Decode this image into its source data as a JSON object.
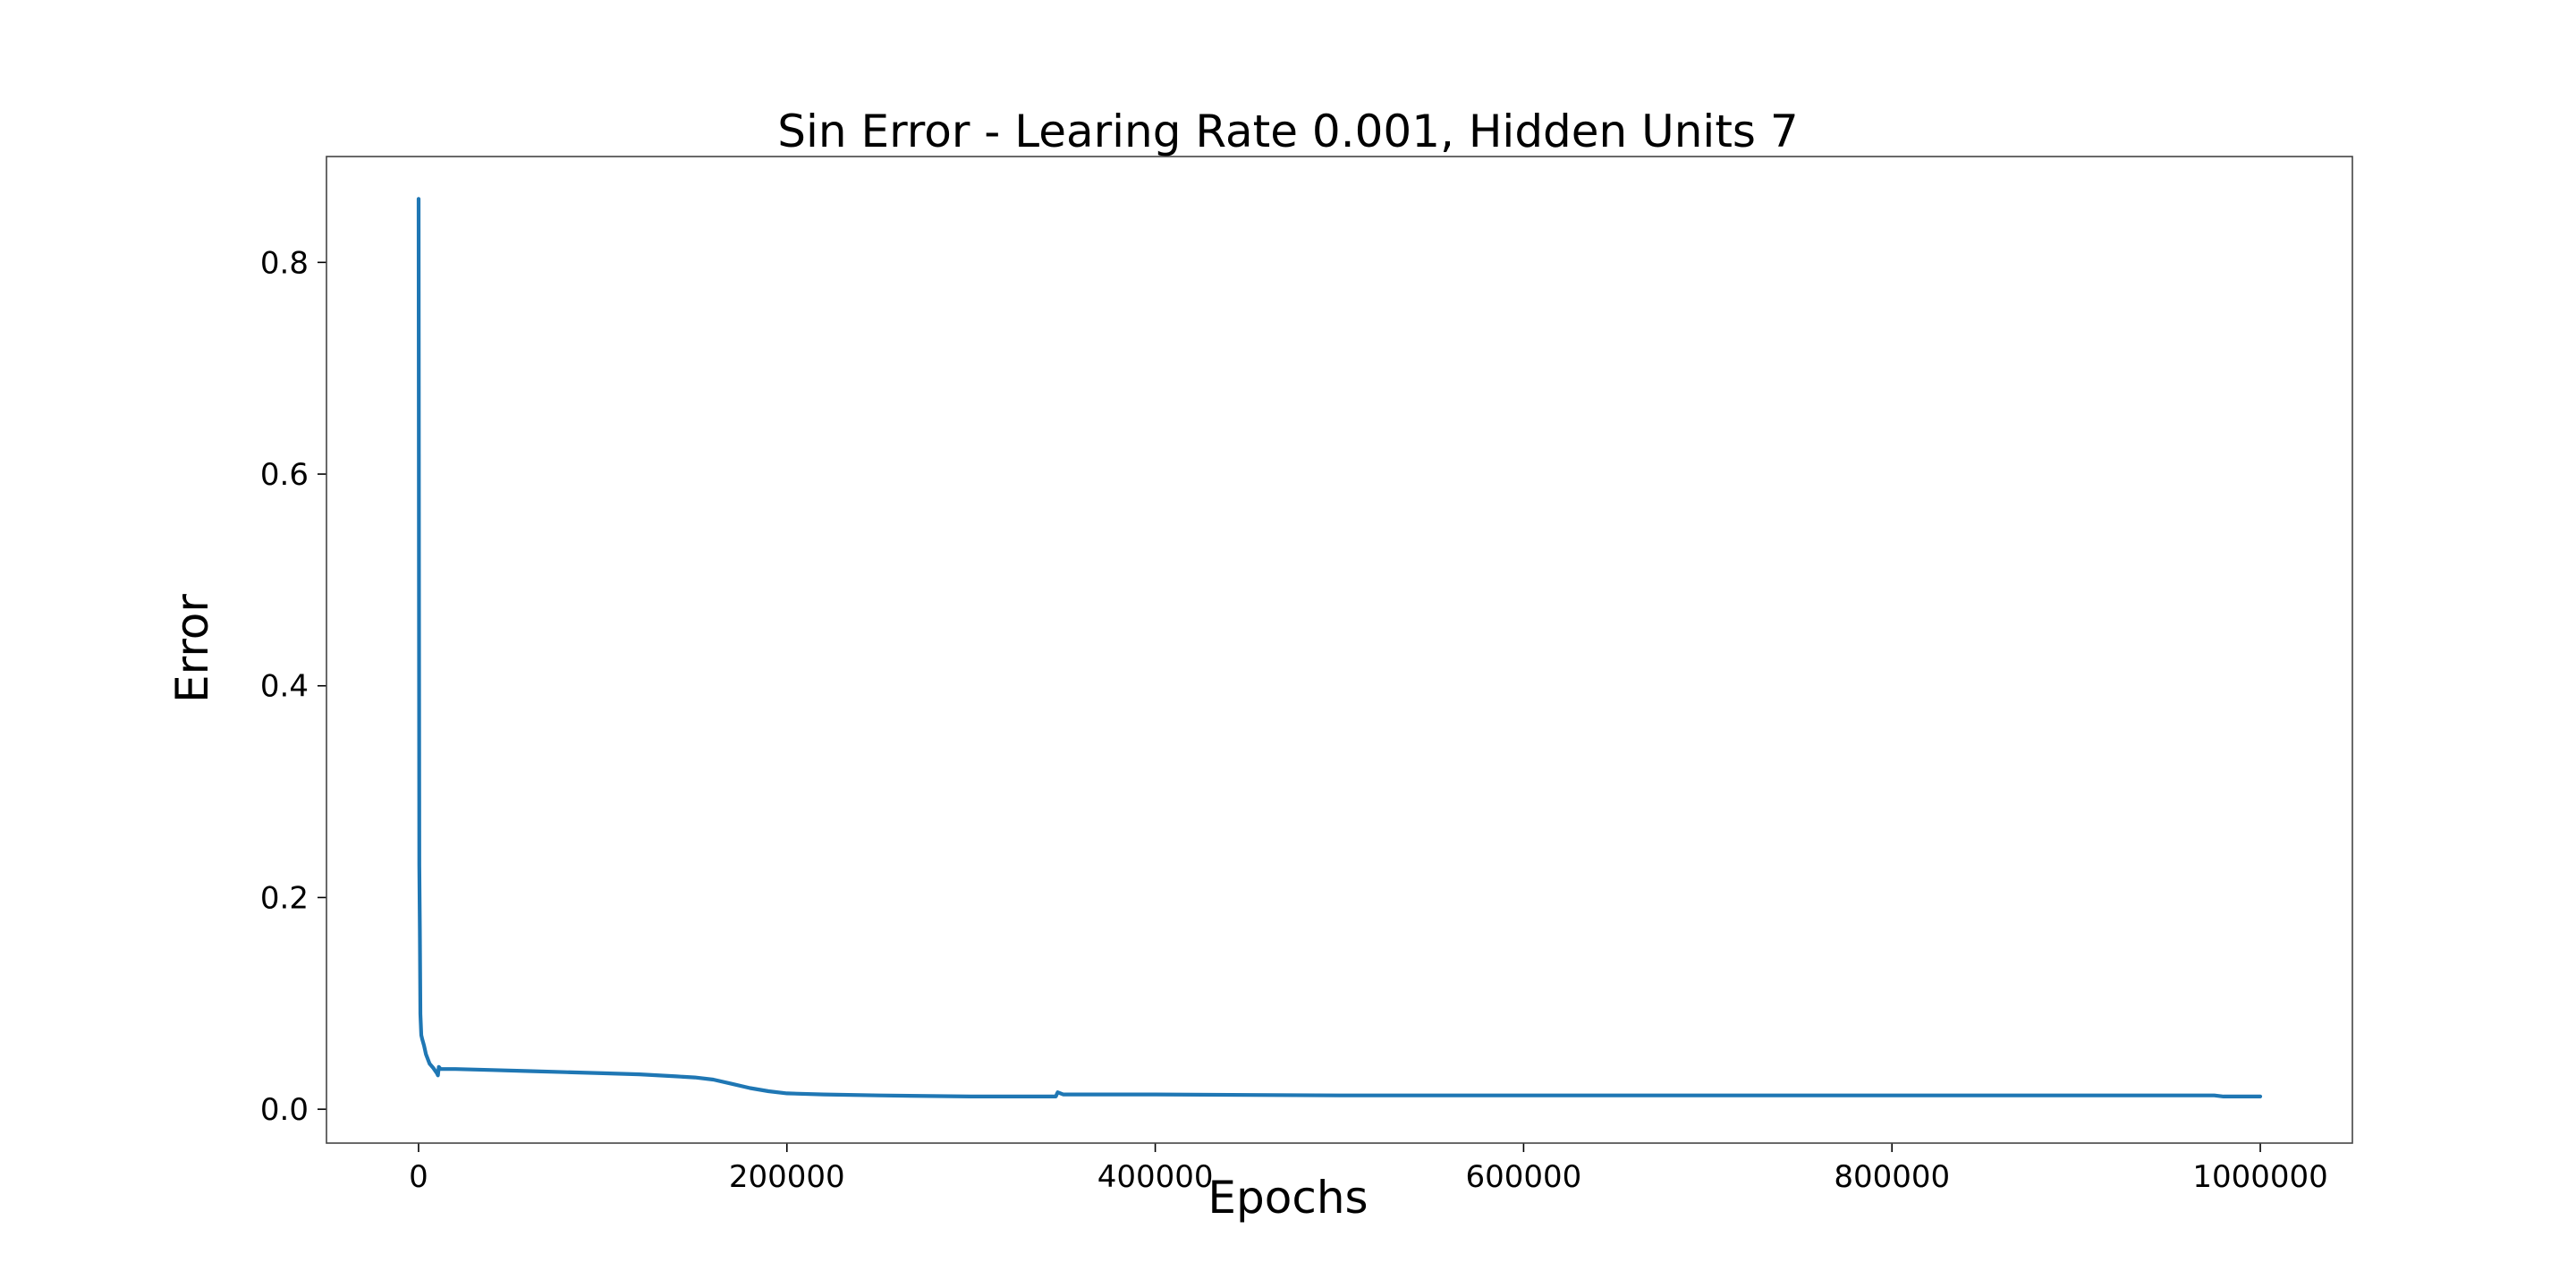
{
  "chart_data": {
    "type": "line",
    "title": "Sin Error - Learing Rate 0.001, Hidden Units 7",
    "xlabel": "Epochs",
    "ylabel": "Error",
    "xlim": [
      -50000,
      1050000
    ],
    "ylim": [
      -0.032,
      0.9
    ],
    "xticks": [
      0,
      200000,
      400000,
      600000,
      800000,
      1000000
    ],
    "xtick_labels": [
      "0",
      "200000",
      "400000",
      "600000",
      "800000",
      "1000000"
    ],
    "yticks": [
      0.0,
      0.2,
      0.4,
      0.6,
      0.8
    ],
    "ytick_labels": [
      "0.0",
      "0.2",
      "0.4",
      "0.6",
      "0.8"
    ],
    "grid": false,
    "legend": "none",
    "series": [
      {
        "color": "#1f77b4",
        "x": [
          0,
          200,
          400,
          700,
          1000,
          1500,
          2000,
          3000,
          4000,
          6000,
          8000,
          10000,
          10500,
          11000,
          12000,
          14000,
          20000,
          40000,
          60000,
          80000,
          100000,
          120000,
          140000,
          150000,
          160000,
          170000,
          180000,
          190000,
          200000,
          220000,
          250000,
          300000,
          346000,
          347000,
          350000,
          400000,
          500000,
          600000,
          700000,
          800000,
          900000,
          975000,
          980000,
          1000000
        ],
        "y": [
          0.86,
          0.5,
          0.23,
          0.17,
          0.09,
          0.07,
          0.066,
          0.06,
          0.052,
          0.043,
          0.039,
          0.034,
          0.032,
          0.04,
          0.038,
          0.038,
          0.038,
          0.037,
          0.036,
          0.035,
          0.034,
          0.033,
          0.031,
          0.03,
          0.028,
          0.024,
          0.02,
          0.017,
          0.015,
          0.014,
          0.013,
          0.012,
          0.012,
          0.016,
          0.014,
          0.014,
          0.013,
          0.013,
          0.013,
          0.013,
          0.013,
          0.013,
          0.012,
          0.012
        ]
      }
    ]
  }
}
